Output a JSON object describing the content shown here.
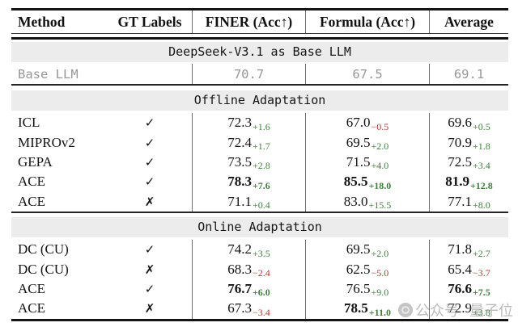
{
  "table": {
    "columns": [
      "Method",
      "GT Labels",
      "FINER (Acc↑)",
      "Formula (Acc↑)",
      "Average"
    ],
    "base": {
      "band_title": "DeepSeek-V3.1 as Base LLM",
      "method": "Base LLM",
      "values": [
        "70.7",
        "67.5",
        "69.1"
      ]
    },
    "sections": [
      {
        "title": "Offline Adaptation",
        "rows": [
          {
            "method": "ICL",
            "gt": "check",
            "cells": [
              {
                "v": "72.3",
                "d": "+1.6",
                "dir": "g",
                "bold": false
              },
              {
                "v": "67.0",
                "d": "−0.5",
                "dir": "r",
                "bold": false
              },
              {
                "v": "69.6",
                "d": "+0.5",
                "dir": "g",
                "bold": false
              }
            ]
          },
          {
            "method": "MIPROv2",
            "gt": "check",
            "cells": [
              {
                "v": "72.4",
                "d": "+1.7",
                "dir": "g",
                "bold": false
              },
              {
                "v": "69.5",
                "d": "+2.0",
                "dir": "g",
                "bold": false
              },
              {
                "v": "70.9",
                "d": "+1.8",
                "dir": "g",
                "bold": false
              }
            ]
          },
          {
            "method": "GEPA",
            "gt": "check",
            "cells": [
              {
                "v": "73.5",
                "d": "+2.8",
                "dir": "g",
                "bold": false
              },
              {
                "v": "71.5",
                "d": "+4.0",
                "dir": "g",
                "bold": false
              },
              {
                "v": "72.5",
                "d": "+3.4",
                "dir": "g",
                "bold": false
              }
            ]
          },
          {
            "method": "ACE",
            "gt": "check",
            "cells": [
              {
                "v": "78.3",
                "d": "+7.6",
                "dir": "g",
                "bold": true
              },
              {
                "v": "85.5",
                "d": "+18.0",
                "dir": "g",
                "bold": true
              },
              {
                "v": "81.9",
                "d": "+12.8",
                "dir": "g",
                "bold": true
              }
            ]
          },
          {
            "method": "ACE",
            "gt": "cross",
            "cells": [
              {
                "v": "71.1",
                "d": "+0.4",
                "dir": "g",
                "bold": false
              },
              {
                "v": "83.0",
                "d": "+15.5",
                "dir": "g",
                "bold": false
              },
              {
                "v": "77.1",
                "d": "+8.0",
                "dir": "g",
                "bold": false
              }
            ]
          }
        ]
      },
      {
        "title": "Online Adaptation",
        "rows": [
          {
            "method": "DC (CU)",
            "gt": "check",
            "cells": [
              {
                "v": "74.2",
                "d": "+3.5",
                "dir": "g",
                "bold": false
              },
              {
                "v": "69.5",
                "d": "+2.0",
                "dir": "g",
                "bold": false
              },
              {
                "v": "71.8",
                "d": "+2.7",
                "dir": "g",
                "bold": false
              }
            ]
          },
          {
            "method": "DC (CU)",
            "gt": "cross",
            "cells": [
              {
                "v": "68.3",
                "d": "−2.4",
                "dir": "r",
                "bold": false
              },
              {
                "v": "62.5",
                "d": "−5.0",
                "dir": "r",
                "bold": false
              },
              {
                "v": "65.4",
                "d": "−3.7",
                "dir": "r",
                "bold": false
              }
            ]
          },
          {
            "method": "ACE",
            "gt": "check",
            "cells": [
              {
                "v": "76.7",
                "d": "+6.0",
                "dir": "g",
                "bold": true
              },
              {
                "v": "76.5",
                "d": "+9.0",
                "dir": "g",
                "bold": false
              },
              {
                "v": "76.6",
                "d": "+7.5",
                "dir": "g",
                "bold": true
              }
            ]
          },
          {
            "method": "ACE",
            "gt": "cross",
            "cells": [
              {
                "v": "67.3",
                "d": "−3.4",
                "dir": "r",
                "bold": false
              },
              {
                "v": "78.5",
                "d": "+11.0",
                "dir": "g",
                "bold": true
              },
              {
                "v": "72.9",
                "d": "+3.8",
                "dir": "g",
                "bold": false
              }
            ]
          }
        ]
      }
    ]
  },
  "icons": {
    "check": "✓",
    "cross": "✗"
  },
  "colors": {
    "positive_delta": "#3e7e3e",
    "negative_delta": "#b5372e",
    "section_band_bg": "#ececec",
    "muted_text": "#979797",
    "rule_ink": "#141414"
  },
  "watermark": {
    "text_1": "公众号",
    "text_2": "量子位"
  }
}
